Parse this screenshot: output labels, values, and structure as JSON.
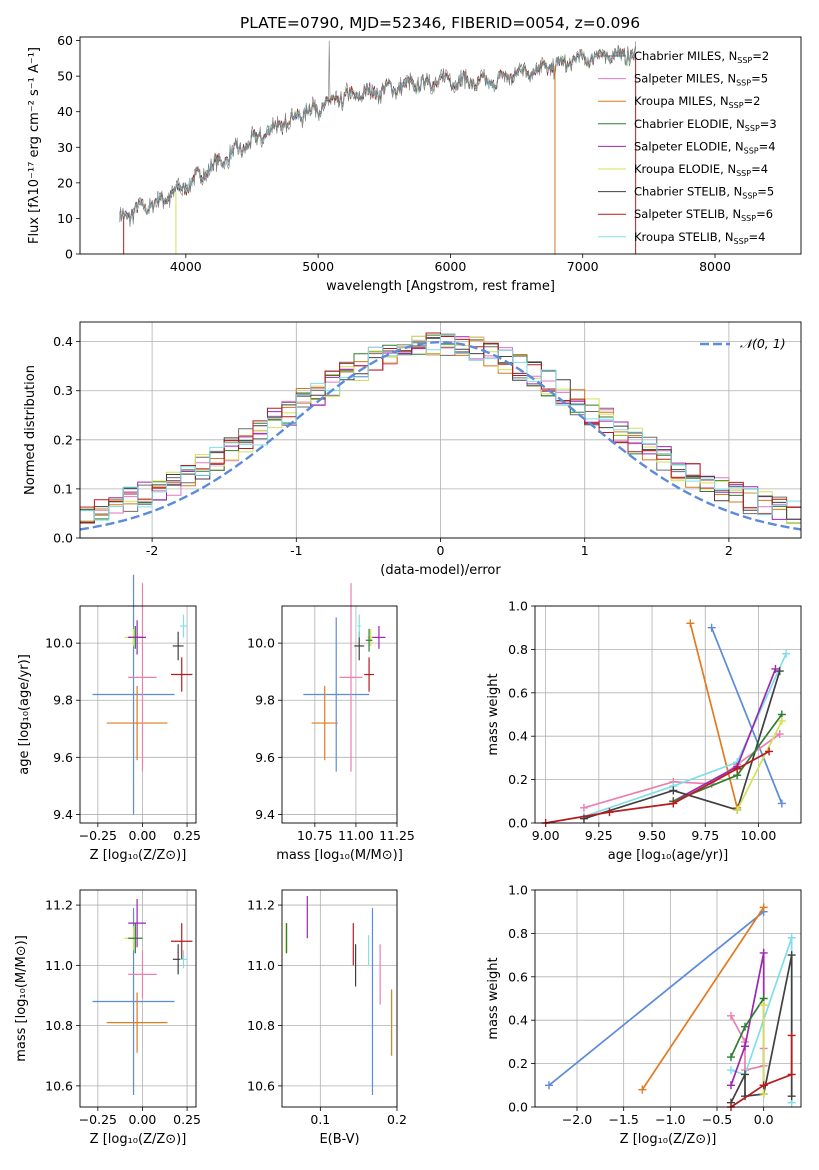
{
  "title": "PLATE=0790, MJD=52346, FIBERID=0054, z=0.096",
  "colors": {
    "Chabrier MILES": "#6d6d6d",
    "Salpeter MILES": "#e377c2",
    "Kroupa MILES": "#d6781a",
    "Chabrier ELODIE": "#2e7d32",
    "Salpeter ELODIE": "#9c27b0",
    "Kroupa ELODIE": "#d4e157",
    "Chabrier STELIB": "#404040",
    "Salpeter STELIB": "#b71c1c",
    "Kroupa STELIB": "#80deea",
    "blue": "#5b8bd9",
    "orange": "#e07b1f",
    "pink": "#ea80b0",
    "normal": "#5b8bd9"
  },
  "chart_data": [
    {
      "id": "spectrum",
      "type": "line",
      "title": "PLATE=0790, MJD=52346, FIBERID=0054, z=0.096",
      "xlabel": "wavelength [Angstrom, rest frame]",
      "ylabel": "Flux [fλ10⁻¹⁷ erg cm⁻² s⁻¹ A⁻¹]",
      "xlim": [
        3200,
        8650
      ],
      "ylim": [
        0,
        61
      ],
      "xticks": [
        4000,
        5000,
        6000,
        7000,
        8000
      ],
      "yticks": [
        0,
        10,
        20,
        30,
        40,
        50,
        60
      ],
      "legend_position": "right",
      "data_range": [
        3500,
        7400
      ],
      "legend": [
        "Chabrier MILES, N_SSP=2",
        "Salpeter MILES, N_SSP=5",
        "Kroupa MILES, N_SSP=2",
        "Chabrier ELODIE, N_SSP=3",
        "Salpeter ELODIE, N_SSP=4",
        "Kroupa ELODIE, N_SSP=4",
        "Chabrier STELIB, N_SSP=5",
        "Salpeter STELIB, N_SSP=6",
        "Kroupa STELIB, N_SSP=4"
      ],
      "continuum": [
        {
          "x": 3500,
          "y": 10
        },
        {
          "x": 3600,
          "y": 12
        },
        {
          "x": 3750,
          "y": 14
        },
        {
          "x": 3950,
          "y": 18
        },
        {
          "x": 4100,
          "y": 22
        },
        {
          "x": 4300,
          "y": 27
        },
        {
          "x": 4600,
          "y": 34
        },
        {
          "x": 4900,
          "y": 40
        },
        {
          "x": 5200,
          "y": 44
        },
        {
          "x": 5600,
          "y": 47
        },
        {
          "x": 6000,
          "y": 49
        },
        {
          "x": 6300,
          "y": 48
        },
        {
          "x": 6500,
          "y": 51
        },
        {
          "x": 6800,
          "y": 53
        },
        {
          "x": 7000,
          "y": 55
        },
        {
          "x": 7200,
          "y": 56
        },
        {
          "x": 7400,
          "y": 56
        }
      ]
    },
    {
      "id": "residuals",
      "type": "area",
      "xlabel": "(data-model)/error",
      "ylabel": "Normed distribution",
      "xlim": [
        -2.5,
        2.5
      ],
      "ylim": [
        0,
        0.44
      ],
      "xticks": [
        -2,
        -1,
        0,
        1,
        2
      ],
      "yticks": [
        0.0,
        0.1,
        0.2,
        0.3,
        0.4
      ],
      "legend": [
        "𝒩(0, 1)"
      ],
      "legend_position": "top-right",
      "bin_width": 0.1
    },
    {
      "id": "age_vs_Z",
      "type": "scatter",
      "xlabel": "Z [log₁₀(Z/Z⊙)]",
      "ylabel": "age  [log₁₀(age/yr)]",
      "xlim": [
        -0.35,
        0.3
      ],
      "ylim": [
        9.37,
        10.13
      ],
      "xticks": [
        -0.25,
        0.0,
        0.25
      ],
      "xticklabels": [
        "−0.25",
        "0.00",
        "0.25"
      ],
      "yticks": [
        9.4,
        9.6,
        9.8,
        10.0
      ],
      "yticklabels": [
        "9.4",
        "9.6",
        "9.8",
        "10.0"
      ],
      "points": [
        {
          "series": "blue",
          "x": -0.05,
          "xerr": 0.23,
          "y": 9.82,
          "yerr": 0.42
        },
        {
          "series": "orange",
          "x": -0.03,
          "xerr": 0.17,
          "y": 9.72,
          "yerr": 0.13
        },
        {
          "series": "pink",
          "x": 0.0,
          "xerr": 0.08,
          "y": 9.88,
          "yerr": 0.33
        },
        {
          "series": "Kroupa ELODIE",
          "x": -0.05,
          "xerr": 0.05,
          "y": 10.02,
          "yerr": 0.03
        },
        {
          "series": "Chabrier ELODIE",
          "x": -0.04,
          "xerr": 0.04,
          "y": 10.02,
          "yerr": 0.04
        },
        {
          "series": "Salpeter ELODIE",
          "x": -0.03,
          "xerr": 0.05,
          "y": 10.02,
          "yerr": 0.06
        },
        {
          "series": "Chabrier STELIB",
          "x": 0.2,
          "xerr": 0.03,
          "y": 9.99,
          "yerr": 0.05
        },
        {
          "series": "Salpeter STELIB",
          "x": 0.22,
          "xerr": 0.06,
          "y": 9.89,
          "yerr": 0.06
        },
        {
          "series": "Kroupa STELIB",
          "x": 0.23,
          "xerr": 0.02,
          "y": 10.06,
          "yerr": 0.04
        }
      ]
    },
    {
      "id": "age_vs_mass",
      "type": "scatter",
      "xlabel": "mass [log₁₀(M/M⊙)]",
      "ylabel": "",
      "xlim": [
        10.55,
        11.25
      ],
      "ylim": [
        9.37,
        10.13
      ],
      "xticks": [
        10.75,
        11.0,
        11.25
      ],
      "xticklabels": [
        "10.75",
        "11.00",
        "11.25"
      ],
      "yticks": [
        9.4,
        9.6,
        9.8,
        10.0
      ],
      "yticklabels": [
        "9.4",
        "9.6",
        "9.8",
        "10.0"
      ],
      "points": [
        {
          "series": "blue",
          "x": 10.88,
          "xerr": 0.2,
          "y": 9.82,
          "yerr": 0.27
        },
        {
          "series": "orange",
          "x": 10.81,
          "xerr": 0.08,
          "y": 9.72,
          "yerr": 0.13
        },
        {
          "series": "pink",
          "x": 10.97,
          "xerr": 0.07,
          "y": 9.88,
          "yerr": 0.33
        },
        {
          "series": "Kroupa ELODIE",
          "x": 11.09,
          "xerr": 0.02,
          "y": 10.02,
          "yerr": 0.03
        },
        {
          "series": "Chabrier ELODIE",
          "x": 11.08,
          "xerr": 0.02,
          "y": 10.01,
          "yerr": 0.04
        },
        {
          "series": "Salpeter ELODIE",
          "x": 11.14,
          "xerr": 0.04,
          "y": 10.02,
          "yerr": 0.04
        },
        {
          "series": "Chabrier STELIB",
          "x": 11.02,
          "xerr": 0.03,
          "y": 9.99,
          "yerr": 0.05
        },
        {
          "series": "Salpeter STELIB",
          "x": 11.08,
          "xerr": 0.03,
          "y": 9.89,
          "yerr": 0.06
        },
        {
          "series": "Kroupa STELIB",
          "x": 11.02,
          "xerr": 0.01,
          "y": 10.06,
          "yerr": 0.04
        }
      ]
    },
    {
      "id": "weight_vs_age",
      "type": "line",
      "xlabel": "age  [log₁₀(age/yr)]",
      "ylabel": "mass weight",
      "xlim": [
        8.95,
        10.2
      ],
      "ylim": [
        0,
        1
      ],
      "xticks": [
        9.0,
        9.25,
        9.5,
        9.75,
        10.0
      ],
      "xticklabels": [
        "9.00",
        "9.25",
        "9.50",
        "9.75",
        "10.00"
      ],
      "yticks": [
        0,
        0.2,
        0.4,
        0.6,
        0.8,
        1.0
      ],
      "yticklabels": [
        "0.0",
        "0.2",
        "0.4",
        "0.6",
        "0.8",
        "1.0"
      ],
      "series": [
        {
          "name": "blue",
          "x": [
            9.78,
            10.11
          ],
          "y": [
            0.9,
            0.09
          ]
        },
        {
          "name": "orange",
          "x": [
            9.68,
            9.9
          ],
          "y": [
            0.92,
            0.07
          ]
        },
        {
          "name": "pink",
          "x": [
            9.18,
            9.6,
            9.78,
            9.9,
            10.1
          ],
          "y": [
            0.07,
            0.19,
            0.18,
            0.27,
            0.41
          ]
        },
        {
          "name": "Kroupa STELIB",
          "x": [
            9.18,
            9.6,
            9.9,
            10.13
          ],
          "y": [
            0.03,
            0.17,
            0.28,
            0.78
          ]
        },
        {
          "name": "Salpeter ELODIE",
          "x": [
            9.6,
            9.9,
            10.08
          ],
          "y": [
            0.1,
            0.26,
            0.71
          ]
        },
        {
          "name": "Chabrier STELIB",
          "x": [
            9.18,
            9.6,
            9.9,
            10.1
          ],
          "y": [
            0.02,
            0.15,
            0.06,
            0.7
          ]
        },
        {
          "name": "Chabrier ELODIE",
          "x": [
            9.6,
            9.9,
            10.11
          ],
          "y": [
            0.1,
            0.22,
            0.5
          ]
        },
        {
          "name": "Kroupa ELODIE",
          "x": [
            9.9,
            10.11
          ],
          "y": [
            0.06,
            0.47
          ]
        },
        {
          "name": "Salpeter STELIB",
          "x": [
            9.0,
            9.3,
            9.6,
            9.9,
            10.05
          ],
          "y": [
            0.0,
            0.05,
            0.09,
            0.25,
            0.33
          ]
        }
      ]
    },
    {
      "id": "mass_vs_Z",
      "type": "scatter",
      "xlabel": "Z [log₁₀(Z/Z⊙)]",
      "ylabel": "mass [log₁₀(M/M⊙)]",
      "xlim": [
        -0.35,
        0.3
      ],
      "ylim": [
        10.53,
        11.25
      ],
      "xticks": [
        -0.25,
        0.0,
        0.25
      ],
      "xticklabels": [
        "−0.25",
        "0.00",
        "0.25"
      ],
      "yticks": [
        10.6,
        10.8,
        11.0,
        11.2
      ],
      "yticklabels": [
        "10.6",
        "10.8",
        "11.0",
        "11.2"
      ],
      "points": [
        {
          "series": "blue",
          "x": -0.05,
          "xerr": 0.23,
          "y": 10.88,
          "yerr": 0.31
        },
        {
          "series": "orange",
          "x": -0.03,
          "xerr": 0.17,
          "y": 10.81,
          "yerr": 0.1
        },
        {
          "series": "pink",
          "x": 0.0,
          "xerr": 0.08,
          "y": 10.97,
          "yerr": 0.08
        },
        {
          "series": "Kroupa ELODIE",
          "x": -0.05,
          "xerr": 0.05,
          "y": 11.09,
          "yerr": 0.04
        },
        {
          "series": "Chabrier ELODIE",
          "x": -0.04,
          "xerr": 0.04,
          "y": 11.09,
          "yerr": 0.05
        },
        {
          "series": "Salpeter ELODIE",
          "x": -0.03,
          "xerr": 0.05,
          "y": 11.14,
          "yerr": 0.08
        },
        {
          "series": "Chabrier STELIB",
          "x": 0.2,
          "xerr": 0.03,
          "y": 11.02,
          "yerr": 0.05
        },
        {
          "series": "Salpeter STELIB",
          "x": 0.22,
          "xerr": 0.06,
          "y": 11.08,
          "yerr": 0.06
        },
        {
          "series": "Kroupa STELIB",
          "x": 0.23,
          "xerr": 0.02,
          "y": 11.02,
          "yerr": 0.03
        }
      ]
    },
    {
      "id": "mass_vs_ebv",
      "type": "scatter",
      "xlabel": "E(B-V)",
      "ylabel": "",
      "xlim": [
        0.05,
        0.2
      ],
      "ylim": [
        10.53,
        11.25
      ],
      "xticks": [
        0.1,
        0.2
      ],
      "xticklabels": [
        "0.1",
        "0.2"
      ],
      "yticks": [
        10.6,
        10.8,
        11.0,
        11.2
      ],
      "yticklabels": [
        "10.6",
        "10.8",
        "11.0",
        "11.2"
      ],
      "points": [
        {
          "series": "blue",
          "x": 0.168,
          "xerr": 0,
          "y": 10.88,
          "yerr": 0.31
        },
        {
          "series": "orange",
          "x": 0.193,
          "xerr": 0,
          "y": 10.81,
          "yerr": 0.11
        },
        {
          "series": "pink",
          "x": 0.178,
          "xerr": 0,
          "y": 10.97,
          "yerr": 0.1
        },
        {
          "series": "Kroupa ELODIE",
          "x": 0.055,
          "xerr": 0,
          "y": 11.09,
          "yerr": 0.05
        },
        {
          "series": "Chabrier ELODIE",
          "x": 0.056,
          "xerr": 0,
          "y": 11.09,
          "yerr": 0.05
        },
        {
          "series": "Salpeter ELODIE",
          "x": 0.083,
          "xerr": 0,
          "y": 11.16,
          "yerr": 0.07
        },
        {
          "series": "Chabrier STELIB",
          "x": 0.146,
          "xerr": 0,
          "y": 11.0,
          "yerr": 0.07
        },
        {
          "series": "Salpeter STELIB",
          "x": 0.143,
          "xerr": 0,
          "y": 11.07,
          "yerr": 0.07
        },
        {
          "series": "Kroupa STELIB",
          "x": 0.163,
          "xerr": 0,
          "y": 11.05,
          "yerr": 0.05
        }
      ]
    },
    {
      "id": "weight_vs_Z",
      "type": "line",
      "xlabel": "Z [log₁₀(Z/Z⊙)]",
      "ylabel": "mass weight",
      "xlim": [
        -2.45,
        0.4
      ],
      "ylim": [
        0,
        1
      ],
      "xticks": [
        -2.0,
        -1.5,
        -1.0,
        -0.5,
        0.0
      ],
      "xticklabels": [
        "−2.0",
        "−1.5",
        "−1.0",
        "−0.5",
        "0.0"
      ],
      "yticks": [
        0,
        0.2,
        0.4,
        0.6,
        0.8,
        1.0
      ],
      "yticklabels": [
        "0.0",
        "0.2",
        "0.4",
        "0.6",
        "0.8",
        "1.0"
      ],
      "series": [
        {
          "name": "blue",
          "x": [
            -2.3,
            0.0
          ],
          "y": [
            0.1,
            0.9
          ]
        },
        {
          "name": "orange",
          "x": [
            -1.3,
            0.0
          ],
          "y": [
            0.08,
            0.92
          ]
        },
        {
          "name": "pink",
          "x": [
            -0.35,
            -0.2,
            -0.2,
            0.0,
            0.0
          ],
          "y": [
            0.42,
            0.3,
            0.17,
            0.19,
            0.27
          ]
        },
        {
          "name": "Kroupa STELIB",
          "x": [
            -0.35,
            -0.2,
            0.3,
            0.3
          ],
          "y": [
            0.17,
            0.15,
            0.78,
            0.02
          ]
        },
        {
          "name": "Salpeter ELODIE",
          "x": [
            -0.35,
            -0.2,
            0.0,
            0.0
          ],
          "y": [
            0.1,
            0.28,
            0.71,
            0.1
          ]
        },
        {
          "name": "Chabrier STELIB",
          "x": [
            -0.35,
            -0.2,
            -0.2,
            0.0,
            0.3,
            0.3
          ],
          "y": [
            0.02,
            0.15,
            0.05,
            0.06,
            0.7,
            0.05
          ]
        },
        {
          "name": "Chabrier ELODIE",
          "x": [
            -0.35,
            -0.2,
            0.0
          ],
          "y": [
            0.23,
            0.37,
            0.5
          ]
        },
        {
          "name": "Kroupa ELODIE",
          "x": [
            0.0,
            0.0
          ],
          "y": [
            0.06,
            0.47
          ]
        },
        {
          "name": "Salpeter STELIB",
          "x": [
            -0.35,
            0.0,
            0.3,
            0.3
          ],
          "y": [
            0.0,
            0.1,
            0.15,
            0.33
          ]
        }
      ]
    }
  ]
}
